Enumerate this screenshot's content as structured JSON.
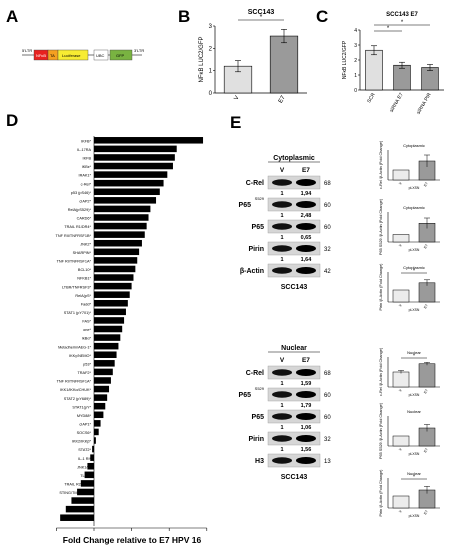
{
  "panels": {
    "A": "A",
    "B": "B",
    "C": "C",
    "D": "D",
    "E": "E"
  },
  "panel_a": {
    "elements": [
      "5'LTR",
      "NFκB",
      "TA",
      "Luciferase",
      "UBC",
      "GFP",
      "3'LTR"
    ],
    "colors": {
      "nfkb": "#e8211f",
      "ta": "#f5a020",
      "luc": "#f7ec32",
      "ubc": "#ffffff",
      "gfp": "#79b341"
    }
  },
  "panel_d": {
    "xlabel": "Fold Change relative to E7 HPV 16"
  },
  "panel_e": {
    "cytoplasmic": {
      "title": "Cytoplasmic",
      "cell_line": "SCC143",
      "lanes": [
        "V",
        "E7"
      ],
      "rows": [
        {
          "label": "C-Rel",
          "sup": "",
          "kda": "68",
          "quant": [
            "1",
            "1,94"
          ]
        },
        {
          "label": "P65",
          "sup": "S529",
          "kda": "60",
          "quant": [
            "1",
            "2,48"
          ]
        },
        {
          "label": "P65",
          "sup": "",
          "kda": "60",
          "quant": [
            "1",
            "0,65"
          ]
        },
        {
          "label": "Pirin",
          "sup": "",
          "kda": "32",
          "quant": [
            "1",
            "1,64"
          ]
        },
        {
          "label": "β-Actin",
          "sup": "",
          "kda": "42",
          "quant": [
            "",
            ""
          ]
        }
      ]
    },
    "nuclear": {
      "title": "Nuclear",
      "cell_line": "SCC143",
      "lanes": [
        "V",
        "E7"
      ],
      "rows": [
        {
          "label": "C-Rel",
          "sup": "",
          "kda": "68",
          "quant": [
            "1",
            "1,59"
          ]
        },
        {
          "label": "P65",
          "sup": "S529",
          "kda": "60",
          "quant": [
            "1",
            "1,79"
          ]
        },
        {
          "label": "P65",
          "sup": "",
          "kda": "60",
          "quant": [
            "1",
            "1,06"
          ]
        },
        {
          "label": "Pirin",
          "sup": "",
          "kda": "32",
          "quant": [
            "1",
            "1,56"
          ]
        },
        {
          "label": "H3",
          "sup": "",
          "kda": "13",
          "quant": [
            "",
            ""
          ]
        }
      ]
    }
  },
  "chart_data": [
    {
      "panel": "B",
      "type": "bar",
      "title": "SCC143",
      "categories": [
        "V",
        "E7"
      ],
      "values": [
        1.2,
        2.55
      ],
      "errors": [
        0.25,
        0.3
      ],
      "ylabel": "NFκB LUC2/GFP",
      "yticks": [
        0,
        1,
        2,
        3
      ],
      "ylim": [
        0,
        3
      ],
      "significance": "*",
      "colors": [
        "#e0e0e0",
        "#9a9a9a"
      ]
    },
    {
      "panel": "C",
      "type": "bar",
      "title": "SCC143 E7",
      "categories": [
        "SCR",
        "siRNA E7",
        "siRNA PIR"
      ],
      "values": [
        2.65,
        1.65,
        1.5
      ],
      "errors": [
        0.3,
        0.2,
        0.2
      ],
      "ylabel": "NFκB LUC2/GFP",
      "yticks": [
        0,
        1,
        2,
        3,
        4
      ],
      "ylim": [
        0,
        4
      ],
      "significance": [
        "*",
        "*"
      ],
      "colors": [
        "#e0e0e0",
        "#9a9a9a",
        "#9a9a9a"
      ]
    },
    {
      "panel": "D",
      "type": "bar",
      "orientation": "horizontal",
      "xlabel": "Fold Change relative to E7 HPV 16",
      "xlim": [
        -2,
        6
      ],
      "categories": [
        "IKFB*",
        "IL-17RA",
        "IKFB",
        "IKBε*",
        "IRAK1*",
        "c-Rel*",
        "p53 (pS46)*",
        "cIAP2*",
        "RelA(pS529)*",
        "CARD6*",
        "TRAIL R1/DR4*",
        "TNF RII/TNFRSF1B*",
        "JNK2*",
        "SHARPIN*",
        "TNF RI/TNFRSF1A*",
        "BCL10*",
        "NFKB1*",
        "LTBR/TNFRSF3*",
        "RelA(pS*",
        "Fadd*",
        "STAT1 (pY701)*",
        "FAS*",
        "one*",
        "IkBα*",
        "Metadherin/AEG-1*",
        "IKKγ/NEMO*",
        "p53*",
        "TRAF2*",
        "TNF RI/TNFRSF1A*",
        "IKK1/IKKα/CHUK*",
        "STAT2 (pY689)*",
        "STAT1(pY*",
        "MYD88*",
        "cIAP1*",
        "SOCS6*",
        "IKK2/IKKβ*",
        "STAT2*",
        "IL-1 RI*",
        "JNK1/2*",
        "TLR2*",
        "TRAIL R2/DR5*",
        "STING/TMEM173*",
        "CD40*",
        "NFKB2*",
        "IL-18 Rα*"
      ],
      "values": [
        5.8,
        4.4,
        4.3,
        4.2,
        3.9,
        3.7,
        3.5,
        3.3,
        3.0,
        2.9,
        2.8,
        2.7,
        2.55,
        2.4,
        2.3,
        2.2,
        2.1,
        2.0,
        1.9,
        1.8,
        1.7,
        1.6,
        1.5,
        1.4,
        1.3,
        1.2,
        1.1,
        1.0,
        0.9,
        0.8,
        0.7,
        0.6,
        0.5,
        0.35,
        0.25,
        0.1,
        -0.1,
        -0.2,
        -0.35,
        -0.5,
        -0.7,
        -0.9,
        -1.2,
        -1.5,
        -1.8
      ]
    },
    {
      "panel": "E",
      "type": "bar",
      "title": "Cytoplasmic",
      "ylabel": "c-Rel /β-Actin (Fold Change)",
      "categories": [
        "V",
        "E7"
      ],
      "values": [
        1.0,
        1.9
      ],
      "errors": [
        0,
        0.6
      ],
      "ylim": [
        0,
        3
      ],
      "xnote": "pLXSN"
    },
    {
      "panel": "E",
      "type": "bar",
      "title": "Cytoplasmic",
      "ylabel": "P65 S529 /β-Actin (Fold Change)",
      "categories": [
        "V",
        "E7"
      ],
      "values": [
        1.0,
        2.5
      ],
      "errors": [
        0,
        0.7
      ],
      "ylim": [
        0,
        4
      ],
      "xnote": "pLXSN"
    },
    {
      "panel": "E",
      "type": "bar",
      "title": "Cytoplasmic",
      "ylabel": "Pirin /β-Actin (Fold Change)",
      "categories": [
        "V",
        "E7"
      ],
      "values": [
        1.0,
        1.6
      ],
      "errors": [
        0,
        0.25
      ],
      "ylim": [
        0,
        2.5
      ],
      "significance": "*",
      "xnote": "pLXSN"
    },
    {
      "panel": "E",
      "type": "bar",
      "title": "Nuclear",
      "ylabel": "c-Rel /β-Actin (Fold Change)",
      "categories": [
        "V",
        "E7"
      ],
      "values": [
        1.0,
        1.55
      ],
      "errors": [
        0.1,
        0.1
      ],
      "ylim": [
        0,
        2
      ],
      "significance": "*",
      "xnote": "pLXSN"
    },
    {
      "panel": "E",
      "type": "bar",
      "title": "Nuclear",
      "ylabel": "P65 S529 /β-Actin (Fold Change)",
      "categories": [
        "V",
        "E7"
      ],
      "values": [
        1.0,
        1.8
      ],
      "errors": [
        0,
        0.35
      ],
      "ylim": [
        0,
        3
      ],
      "xnote": "pLXSN"
    },
    {
      "panel": "E",
      "type": "bar",
      "title": "Nuclear",
      "ylabel": "Pirin /β-Actin (Fold Change)",
      "categories": [
        "V",
        "E7"
      ],
      "values": [
        1.0,
        1.5
      ],
      "errors": [
        0,
        0.3
      ],
      "ylim": [
        0,
        2.5
      ],
      "significance": "*",
      "xnote": "pLXSN"
    }
  ]
}
